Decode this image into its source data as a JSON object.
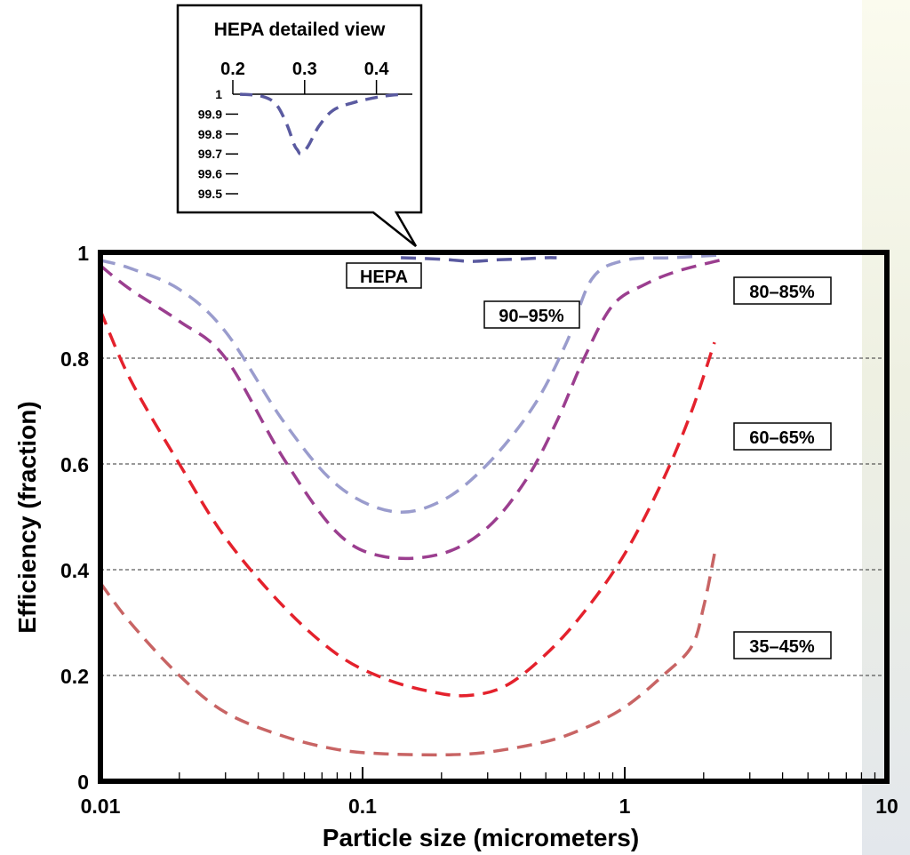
{
  "chart_data": {
    "type": "line",
    "xlabel": "Particle size (micrometers)",
    "ylabel": "Efficiency (fraction)",
    "xscale": "log",
    "xlim": [
      0.01,
      10
    ],
    "ylim": [
      0,
      1
    ],
    "grid": "horizontal dashed",
    "x_ticks": [
      "0.01",
      "0.1",
      "1",
      "10"
    ],
    "y_ticks": [
      "0",
      "0.2",
      "0.4",
      "0.6",
      "0.8",
      "1"
    ],
    "y_tick_values": [
      0,
      0.2,
      0.4,
      0.6,
      0.8,
      1
    ],
    "series": [
      {
        "name": "HEPA",
        "color": "#5a5aa0",
        "x": [
          0.14,
          0.2,
          0.26,
          0.33,
          0.42,
          0.5,
          0.55
        ],
        "y": [
          0.99,
          0.987,
          0.983,
          0.986,
          0.988,
          0.99,
          0.99
        ]
      },
      {
        "name": "90–95%",
        "color": "#9a9ccd",
        "x": [
          0.01,
          0.013,
          0.02,
          0.03,
          0.05,
          0.08,
          0.13,
          0.2,
          0.3,
          0.45,
          0.6,
          0.75,
          1.0,
          1.5,
          2.3
        ],
        "y": [
          0.985,
          0.97,
          0.93,
          0.85,
          0.68,
          0.56,
          0.51,
          0.53,
          0.6,
          0.71,
          0.83,
          0.95,
          0.985,
          0.99,
          0.995
        ]
      },
      {
        "name": "80–85%",
        "color": "#9b3e8f",
        "x": [
          0.01,
          0.013,
          0.02,
          0.03,
          0.05,
          0.08,
          0.12,
          0.2,
          0.3,
          0.42,
          0.55,
          0.7,
          0.9,
          1.2,
          1.6,
          2.3
        ],
        "y": [
          0.975,
          0.93,
          0.87,
          0.8,
          0.61,
          0.47,
          0.425,
          0.43,
          0.48,
          0.57,
          0.68,
          0.8,
          0.9,
          0.94,
          0.965,
          0.985
        ]
      },
      {
        "name": "60–65%",
        "color": "#e4212c",
        "x": [
          0.01,
          0.013,
          0.02,
          0.03,
          0.05,
          0.08,
          0.12,
          0.18,
          0.25,
          0.35,
          0.5,
          0.7,
          1.0,
          1.4,
          1.8,
          2.2
        ],
        "y": [
          0.89,
          0.76,
          0.6,
          0.46,
          0.33,
          0.24,
          0.195,
          0.17,
          0.162,
          0.18,
          0.24,
          0.32,
          0.43,
          0.57,
          0.7,
          0.83
        ]
      },
      {
        "name": "35–45%",
        "color": "#c86464",
        "x": [
          0.01,
          0.013,
          0.02,
          0.03,
          0.05,
          0.08,
          0.12,
          0.2,
          0.3,
          0.5,
          0.7,
          1.0,
          1.4,
          1.8,
          2.0,
          2.2
        ],
        "y": [
          0.375,
          0.3,
          0.2,
          0.13,
          0.085,
          0.06,
          0.052,
          0.05,
          0.055,
          0.075,
          0.1,
          0.14,
          0.2,
          0.255,
          0.33,
          0.43
        ]
      }
    ],
    "labels": {
      "hepa": "HEPA",
      "s90": "90–95%",
      "s80": "80–85%",
      "s60": "60–65%",
      "s35": "35–45%"
    },
    "inset": {
      "title": "HEPA detailed view",
      "x_ticks": [
        "0.2",
        "0.3",
        "0.4"
      ],
      "x_tick_values": [
        0.2,
        0.3,
        0.4
      ],
      "y_ticks": [
        "1",
        "99.9",
        "99.8",
        "99.7",
        "99.6",
        "99.5"
      ],
      "y_tick_values": [
        100,
        99.9,
        99.8,
        99.7,
        99.6,
        99.5
      ],
      "xlim": [
        0.2,
        0.45
      ],
      "ylim": [
        99.5,
        100
      ],
      "series": {
        "color": "#5a5aa0",
        "x": [
          0.21,
          0.24,
          0.26,
          0.275,
          0.285,
          0.29,
          0.295,
          0.305,
          0.32,
          0.34,
          0.37,
          0.41,
          0.44
        ],
        "y": [
          100,
          99.99,
          99.95,
          99.85,
          99.75,
          99.72,
          99.7,
          99.74,
          99.84,
          99.92,
          99.96,
          99.99,
          100
        ]
      }
    }
  }
}
